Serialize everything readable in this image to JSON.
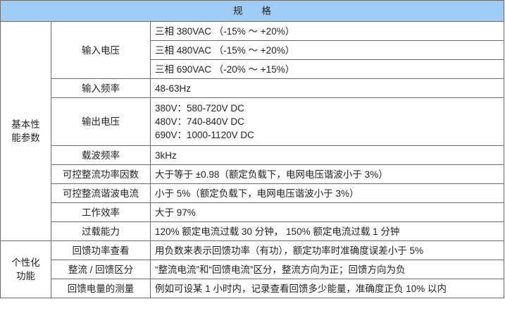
{
  "header": {
    "title": "规　　格",
    "background": "#9fcdf6"
  },
  "groups": [
    {
      "label_line1": "基本性",
      "label_line2": "能参数",
      "rows": [
        {
          "name": "输入电压",
          "values": [
            "三相 380VAC （-15% ～ +20%）",
            "三相 480VAC （-15% ～ +20%）",
            "三相 690VAC （-20% ～ +15%）"
          ]
        },
        {
          "name": "输入频率",
          "values": [
            "48-63Hz"
          ]
        },
        {
          "name": "输出电压",
          "values": [
            "380V：580-720V DC",
            "480V：740-840V DC",
            "690V：1000-1120V DC"
          ]
        },
        {
          "name": "载波频率",
          "values": [
            "3kHz"
          ]
        },
        {
          "name": "可控整流功率因数",
          "values": [
            "大于等于 ±0.98（额定负载下，电网电压谐波小于 3%）"
          ]
        },
        {
          "name": "可控整流谐波电流",
          "values": [
            "小于 5%（额定负载下，电网电压谐波小于 3%）"
          ]
        },
        {
          "name": "工作效率",
          "values": [
            "大于 97%"
          ]
        },
        {
          "name": "过载能力",
          "values": [
            "120% 额定电流过载 30 分钟，  150% 额定电流过载 1 分钟"
          ]
        }
      ]
    },
    {
      "label_line1": "个性化",
      "label_line2": "功能",
      "rows": [
        {
          "name": "回馈功率查看",
          "values": [
            "用负数来表示回馈功率（有功），额定功率时准确度误差小于 5%"
          ]
        },
        {
          "name": "整流 / 回馈区分",
          "values": [
            "“整流电流”和“回馈电流”区分，整流方向为正；回馈方向为负"
          ]
        },
        {
          "name": "回馈电量的测量",
          "values": [
            "例如可设某 1 小时内，记录查看回馈多少能量，准确度正负 10% 以内"
          ]
        }
      ]
    }
  ]
}
